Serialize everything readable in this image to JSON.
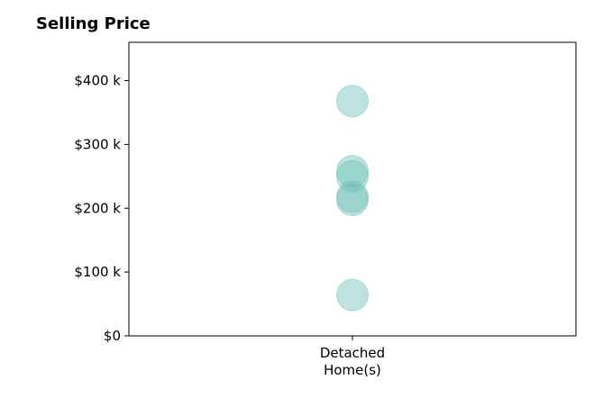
{
  "chart_data": {
    "type": "scatter",
    "title": "Selling Price",
    "xlabel": "",
    "ylabel": "",
    "categories": [
      "Detached\nHome(s)"
    ],
    "ylim": [
      0,
      460000
    ],
    "yticks": [
      0,
      100000,
      200000,
      300000,
      400000
    ],
    "ytick_labels": [
      "$0",
      "$100 k",
      "$200 k",
      "$300 k",
      "$400 k"
    ],
    "series": [
      {
        "category": "Detached\nHome(s)",
        "values": [
          368000,
          258000,
          250000,
          218000,
          213000,
          64000
        ]
      }
    ],
    "point_color": "#6fc0b7",
    "grid": false,
    "legend": "none"
  }
}
